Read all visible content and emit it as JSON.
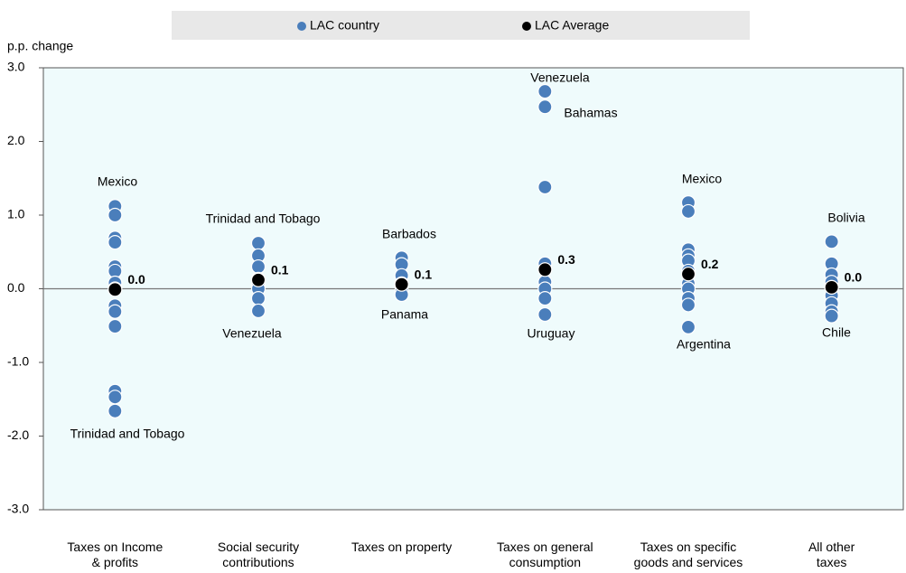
{
  "chart_data": {
    "type": "strip",
    "y_label": "p.p. change",
    "categories": [
      "Taxes on Income\n& profits",
      "Social security\ncontributions",
      "Taxes on property",
      "Taxes on general\nconsumption",
      "Taxes on specific\ngoods and services",
      "All other\ntaxes"
    ],
    "series": [
      {
        "name": "LAC country",
        "color": "#4a7ebb",
        "values": [
          [
            1.12,
            1.0,
            0.69,
            0.63,
            0.3,
            0.24,
            0.08,
            0.0,
            -0.23,
            -0.31,
            -0.51,
            -1.39,
            -1.47,
            -1.66
          ],
          [
            0.62,
            0.45,
            0.3,
            0.13,
            0.05,
            0.0,
            -0.13,
            -0.3
          ],
          [
            0.42,
            0.33,
            0.18,
            0.07,
            -0.03,
            -0.08
          ],
          [
            2.68,
            2.47,
            1.38,
            0.34,
            0.26,
            0.09,
            0.0,
            -0.13,
            -0.35
          ],
          [
            1.17,
            1.05,
            0.53,
            0.45,
            0.38,
            0.24,
            0.07,
            0.0,
            -0.13,
            -0.22,
            -0.52
          ],
          [
            0.64,
            0.34,
            0.19,
            0.09,
            0.02,
            -0.09,
            -0.2,
            -0.31,
            -0.37
          ]
        ]
      },
      {
        "name": "LAC Average",
        "color": "#000000",
        "values": [
          -0.01,
          0.12,
          0.06,
          0.26,
          0.2,
          0.02
        ],
        "value_labels": [
          "0.0",
          "0.1",
          "0.1",
          "0.3",
          "0.2",
          "0.0"
        ]
      }
    ],
    "annotations": [
      "Mexico",
      "Trinidad and Tobago",
      "Trinidad and Tobago",
      "Venezuela",
      "Barbados",
      "Panama",
      "Venezuela",
      "Bahamas",
      "Uruguay",
      "Mexico",
      "Argentina",
      "Bolivia",
      "Chile"
    ],
    "ylim": [
      -3,
      3
    ],
    "yticks": [
      {
        "value": -3,
        "label": "-3.0"
      },
      {
        "value": -2,
        "label": "-2.0"
      },
      {
        "value": -1,
        "label": "-1.0"
      },
      {
        "value": 0,
        "label": "0.0"
      },
      {
        "value": 1,
        "label": "1.0"
      },
      {
        "value": 2,
        "label": "2.0"
      },
      {
        "value": 3,
        "label": "3.0"
      }
    ],
    "legend": "top"
  }
}
